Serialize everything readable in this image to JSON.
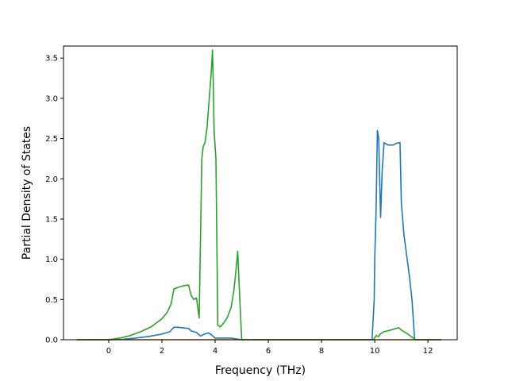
{
  "chart_data": {
    "type": "line",
    "title": "",
    "xlabel": "Frequency (THz)",
    "ylabel": "Partial Density of States",
    "xlim": [
      -1.7,
      13.1
    ],
    "ylim": [
      0.0,
      3.65
    ],
    "xticks": [
      0,
      2,
      4,
      6,
      8,
      10,
      12
    ],
    "xtick_labels": [
      "0",
      "2",
      "4",
      "6",
      "8",
      "10",
      "12"
    ],
    "yticks": [
      0.0,
      0.5,
      1.0,
      1.5,
      2.0,
      2.5,
      3.0,
      3.5
    ],
    "ytick_labels": [
      "0.0",
      "0.5",
      "1.0",
      "1.5",
      "2.0",
      "2.5",
      "3.0",
      "3.5"
    ],
    "grid": false,
    "legend": "none",
    "series": [
      {
        "color": "#1f77b4",
        "x": [
          -1.2,
          -0.5,
          0.0,
          0.5,
          1.0,
          1.5,
          2.0,
          2.3,
          2.45,
          2.6,
          3.0,
          3.1,
          3.3,
          3.45,
          3.6,
          3.75,
          3.85,
          4.0,
          4.2,
          4.6,
          5.0,
          6.0,
          8.0,
          9.9,
          9.98,
          10.0,
          10.05,
          10.1,
          10.15,
          10.22,
          10.28,
          10.35,
          10.5,
          10.7,
          10.8,
          10.95,
          11.0,
          11.1,
          11.3,
          11.4,
          11.5,
          12.5
        ],
        "y": [
          0.0,
          0.0,
          0.0,
          0.005,
          0.02,
          0.04,
          0.07,
          0.1,
          0.155,
          0.155,
          0.14,
          0.11,
          0.09,
          0.045,
          0.07,
          0.085,
          0.065,
          0.02,
          0.02,
          0.02,
          0.0,
          0.0,
          0.0,
          0.0,
          0.5,
          1.0,
          1.6,
          2.6,
          2.5,
          1.52,
          2.1,
          2.45,
          2.42,
          2.42,
          2.44,
          2.45,
          1.7,
          1.3,
          0.8,
          0.5,
          0.0,
          0.0
        ]
      },
      {
        "color": "#ff7f0e",
        "x": [
          -1.2,
          12.5
        ],
        "y": [
          0.0,
          0.0
        ]
      },
      {
        "color": "#2ca02c",
        "x": [
          -1.2,
          -0.5,
          0.0,
          0.4,
          0.8,
          1.2,
          1.6,
          2.0,
          2.2,
          2.35,
          2.45,
          2.6,
          2.8,
          3.0,
          3.1,
          3.2,
          3.3,
          3.4,
          3.5,
          3.55,
          3.62,
          3.7,
          3.78,
          3.85,
          3.9,
          3.93,
          3.96,
          4.03,
          4.1,
          4.2,
          4.3,
          4.45,
          4.6,
          4.7,
          4.78,
          4.85,
          4.9,
          5.0,
          6.0,
          8.0,
          9.95,
          10.05,
          10.15,
          10.2,
          10.35,
          10.6,
          10.9,
          11.0,
          11.2,
          11.45,
          11.55,
          12.5
        ],
        "y": [
          0.0,
          0.0,
          0.0,
          0.02,
          0.05,
          0.1,
          0.16,
          0.26,
          0.34,
          0.45,
          0.63,
          0.65,
          0.67,
          0.68,
          0.55,
          0.5,
          0.52,
          0.27,
          2.25,
          2.4,
          2.45,
          2.65,
          3.0,
          3.3,
          3.6,
          3.2,
          2.6,
          2.25,
          0.18,
          0.16,
          0.2,
          0.27,
          0.4,
          0.6,
          0.85,
          1.1,
          0.7,
          0.0,
          0.0,
          0.0,
          0.0,
          0.05,
          0.04,
          0.07,
          0.1,
          0.12,
          0.15,
          0.12,
          0.08,
          0.02,
          0.0,
          0.0
        ]
      }
    ]
  }
}
